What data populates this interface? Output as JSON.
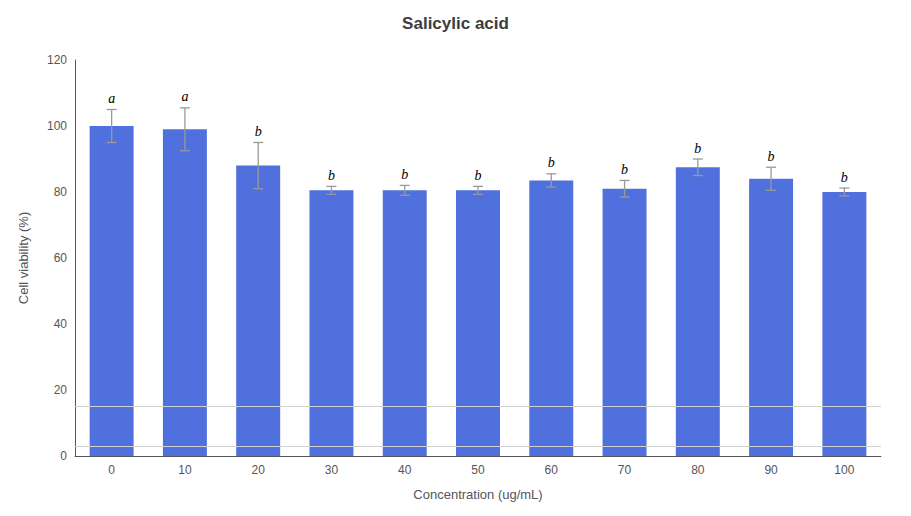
{
  "chart_data": {
    "type": "bar",
    "title": "Salicylic acid",
    "xlabel": "Concentration (ug/mL)",
    "ylabel": "Cell viability (%)",
    "categories": [
      "0",
      "10",
      "20",
      "30",
      "40",
      "50",
      "60",
      "70",
      "80",
      "90",
      "100"
    ],
    "values": [
      100.0,
      99.0,
      88.0,
      80.5,
      80.5,
      80.5,
      83.5,
      81.0,
      87.5,
      84.0,
      80.0
    ],
    "errors": [
      5.0,
      6.5,
      7.0,
      1.2,
      1.5,
      1.2,
      2.0,
      2.5,
      2.5,
      3.5,
      1.2
    ],
    "letters": [
      "a",
      "a",
      "b",
      "b",
      "b",
      "b",
      "b",
      "b",
      "b",
      "b",
      "b"
    ],
    "hlines": [
      15.0,
      3.0
    ],
    "ylim": [
      0,
      120
    ],
    "yticks": [
      0,
      20,
      40,
      60,
      80,
      100,
      120
    ],
    "grid": false
  }
}
